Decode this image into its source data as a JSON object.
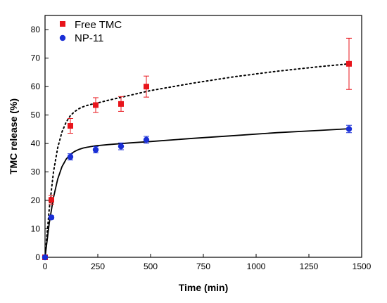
{
  "chart_data": {
    "type": "scatter",
    "xlabel": "Time (min)",
    "ylabel": "TMC release (%)",
    "xlim": [
      0,
      1500
    ],
    "ylim": [
      0,
      85
    ],
    "xticks": [
      0,
      250,
      500,
      750,
      1000,
      1250,
      1500
    ],
    "yticks": [
      0,
      10,
      20,
      30,
      40,
      50,
      60,
      70,
      80
    ],
    "grid": false,
    "legend_position": "top-left",
    "series": [
      {
        "name": "Free TMC",
        "marker": "square",
        "color": "#e8141b",
        "fit_line": "dotted",
        "x": [
          0,
          30,
          120,
          240,
          360,
          480,
          1440
        ],
        "y": [
          0,
          20.2,
          46.2,
          53.5,
          53.9,
          60.0,
          68.0
        ],
        "err": [
          0,
          1.5,
          2.6,
          2.6,
          2.6,
          3.7,
          9.0
        ],
        "fit": {
          "x": [
            0,
            20,
            40,
            60,
            80,
            100,
            120,
            140,
            160,
            180,
            200,
            220,
            240,
            300,
            400,
            500,
            700,
            900,
            1100,
            1300,
            1440
          ],
          "y": [
            0,
            17,
            30,
            38.5,
            44,
            47.5,
            49.8,
            51.2,
            52.2,
            52.9,
            53.4,
            53.8,
            54.1,
            55.2,
            56.9,
            58.6,
            61.2,
            63.5,
            65.4,
            67.0,
            68.0
          ]
        }
      },
      {
        "name": "NP-11",
        "marker": "circle",
        "color": "#1a2fd6",
        "fit_line": "solid",
        "x": [
          0,
          30,
          120,
          240,
          360,
          480,
          1440
        ],
        "y": [
          0,
          14.0,
          35.3,
          37.8,
          39.0,
          41.3,
          45.1
        ],
        "err": [
          0,
          0.6,
          1.1,
          1.1,
          1.2,
          1.2,
          1.3
        ],
        "fit": {
          "x": [
            0,
            20,
            40,
            60,
            80,
            100,
            120,
            140,
            160,
            180,
            200,
            240,
            300,
            400,
            500,
            700,
            900,
            1100,
            1300,
            1440
          ],
          "y": [
            0,
            12,
            21,
            27.5,
            31.8,
            34.5,
            36.2,
            37.2,
            37.9,
            38.4,
            38.7,
            39.2,
            39.6,
            40.2,
            40.7,
            41.8,
            42.8,
            43.8,
            44.6,
            45.2
          ]
        }
      }
    ]
  }
}
